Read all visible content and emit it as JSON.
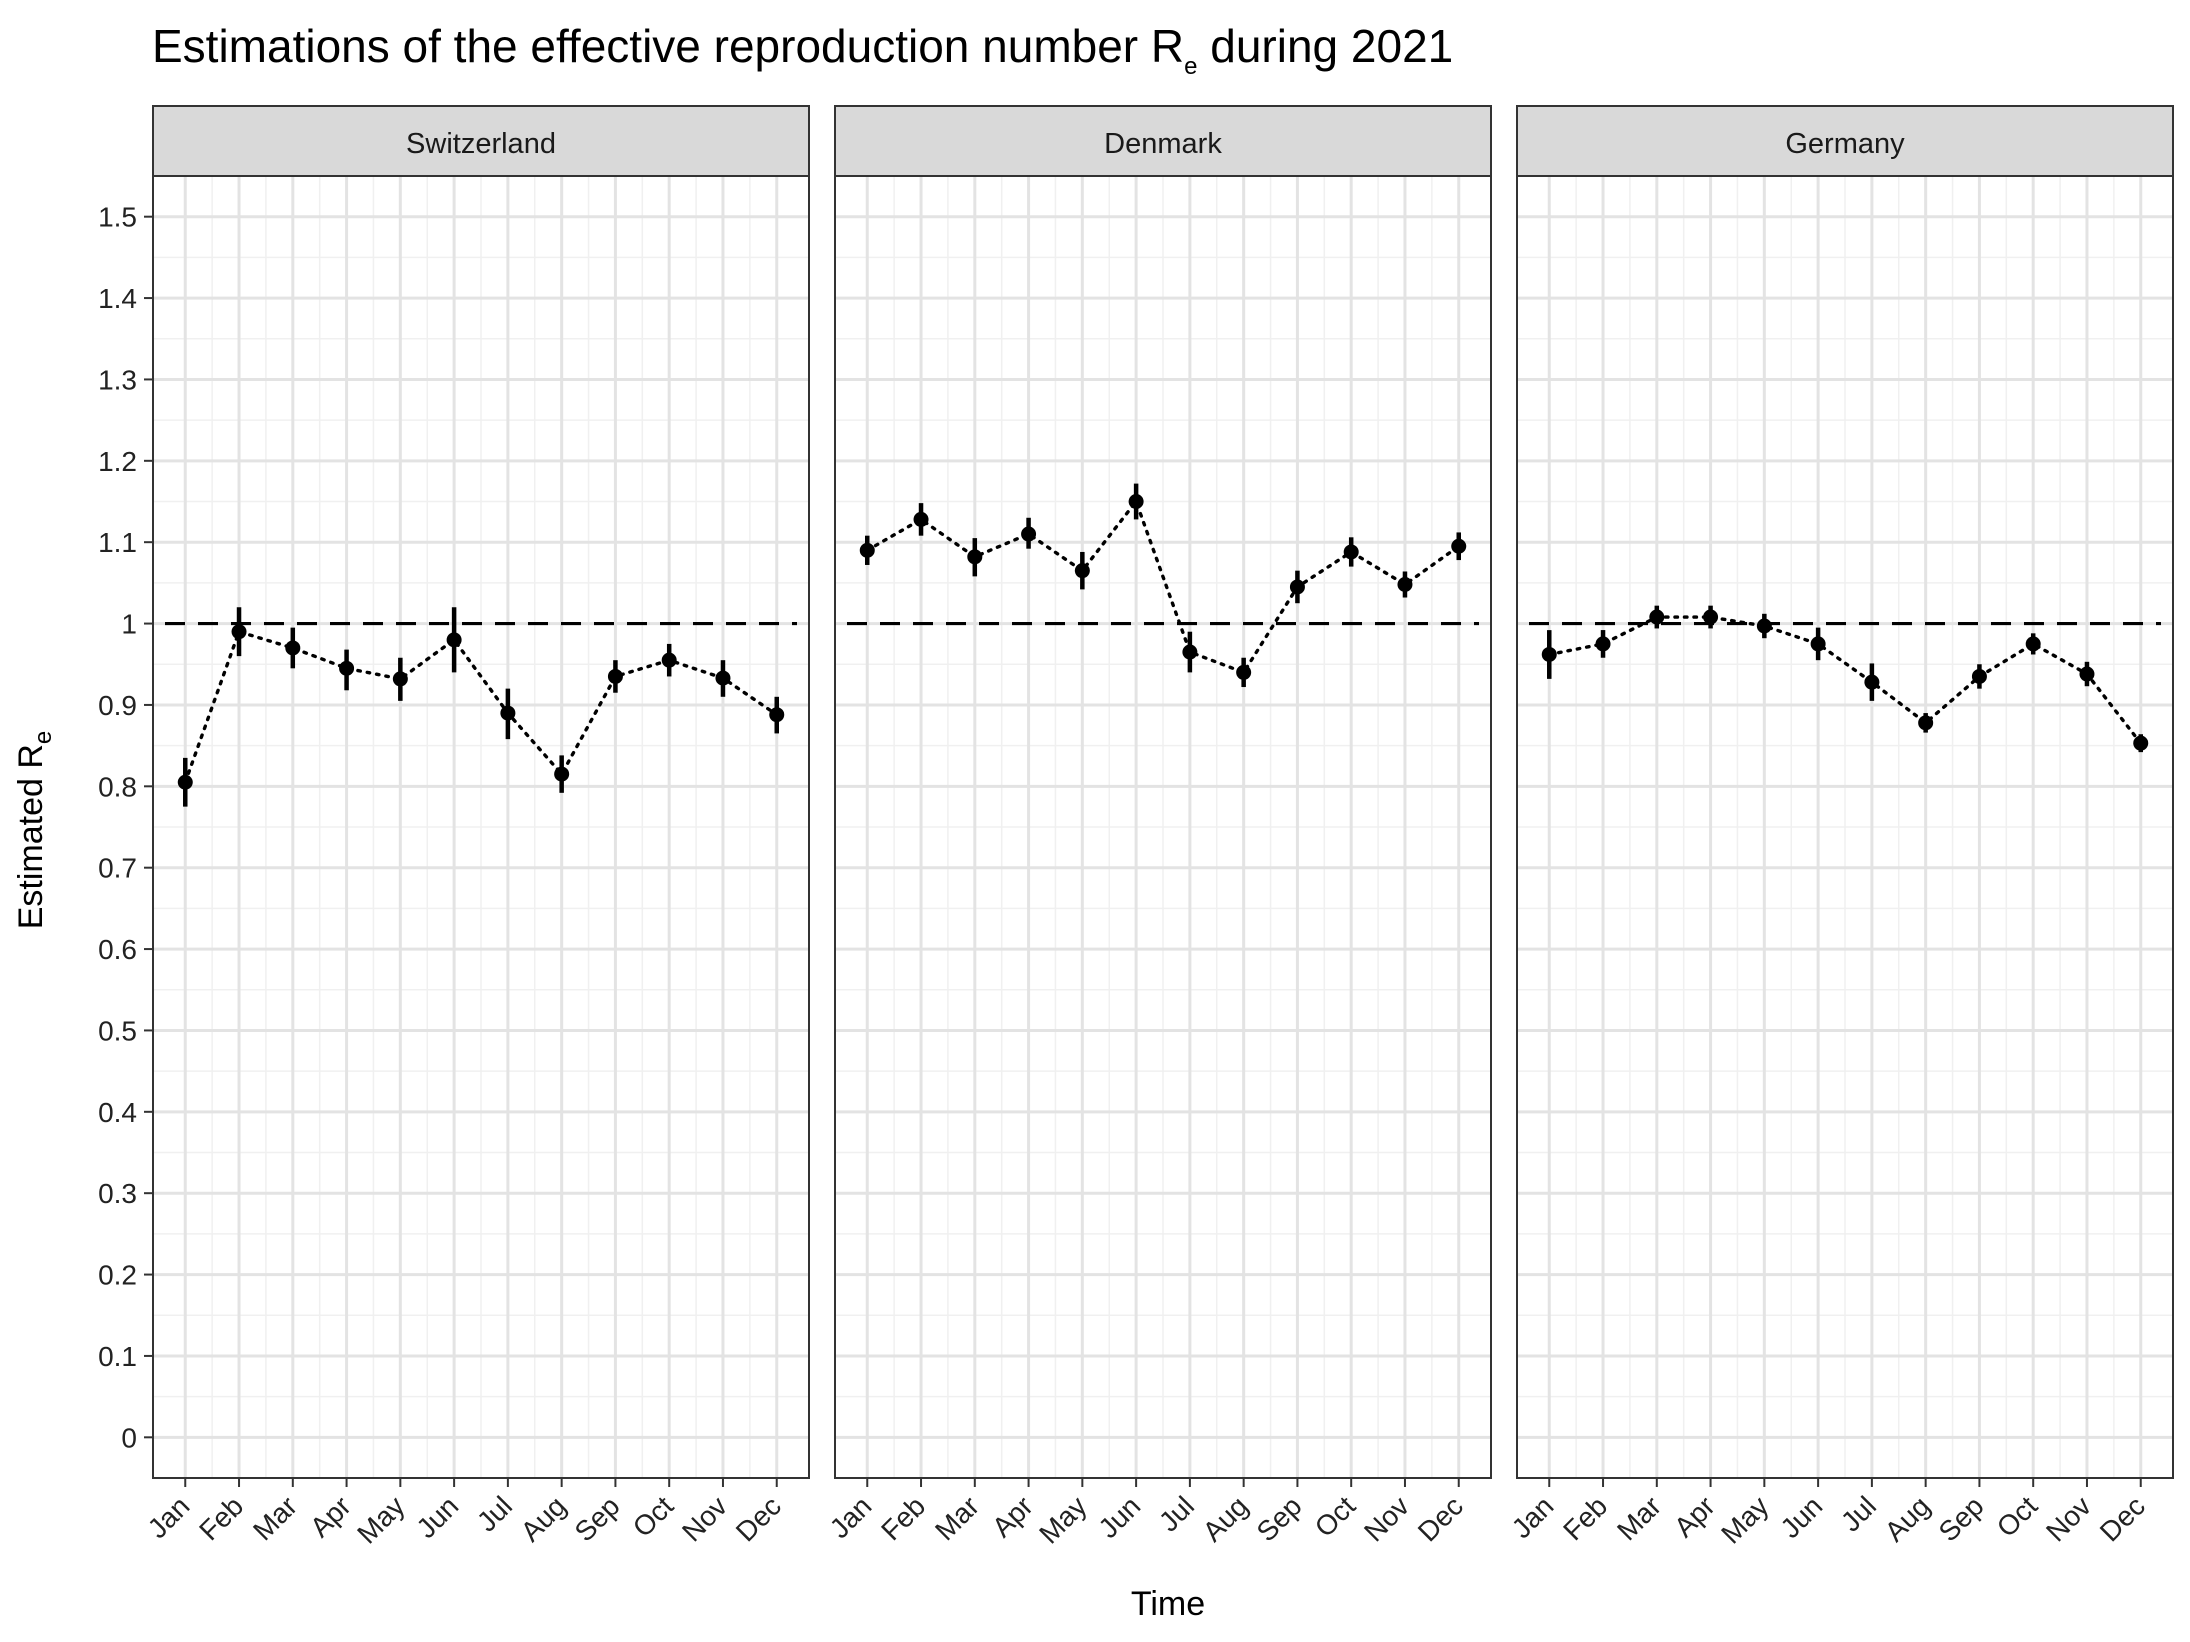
{
  "chart_data": {
    "type": "scatter",
    "title": "Estimations of the effective reproduction number R",
    "title_subscript": "e",
    "title_suffix": " during 2021",
    "xlabel": "Time",
    "ylabel": "Estimated R",
    "ylabel_subscript": "e",
    "ylim": [
      -0.05,
      1.55
    ],
    "yticks": [
      "0",
      "0.1",
      "0.2",
      "0.3",
      "0.4",
      "0.5",
      "0.6",
      "0.7",
      "0.8",
      "0.9",
      "1",
      "1.1",
      "1.2",
      "1.3",
      "1.4",
      "1.5"
    ],
    "reference_line": 1.0,
    "grid": true,
    "categories": [
      "Jan",
      "Feb",
      "Mar",
      "Apr",
      "May",
      "Jun",
      "Jul",
      "Aug",
      "Sep",
      "Oct",
      "Nov",
      "Dec"
    ],
    "panels": [
      {
        "name": "Switzerland",
        "values": [
          0.805,
          0.99,
          0.97,
          0.945,
          0.932,
          0.98,
          0.89,
          0.815,
          0.935,
          0.955,
          0.933,
          0.888
        ],
        "lower": [
          0.775,
          0.96,
          0.945,
          0.918,
          0.905,
          0.94,
          0.858,
          0.792,
          0.915,
          0.935,
          0.91,
          0.865
        ],
        "upper": [
          0.835,
          1.02,
          0.995,
          0.968,
          0.958,
          1.02,
          0.92,
          0.838,
          0.955,
          0.975,
          0.955,
          0.91
        ]
      },
      {
        "name": "Denmark",
        "values": [
          1.09,
          1.128,
          1.082,
          1.11,
          1.065,
          1.15,
          0.965,
          0.94,
          1.045,
          1.088,
          1.048,
          1.095
        ],
        "lower": [
          1.072,
          1.108,
          1.058,
          1.092,
          1.042,
          1.128,
          0.94,
          0.922,
          1.025,
          1.07,
          1.032,
          1.078
        ],
        "upper": [
          1.108,
          1.148,
          1.105,
          1.13,
          1.088,
          1.172,
          0.99,
          0.958,
          1.065,
          1.106,
          1.064,
          1.112
        ]
      },
      {
        "name": "Germany",
        "values": [
          0.962,
          0.975,
          1.008,
          1.008,
          0.997,
          0.975,
          0.928,
          0.878,
          0.935,
          0.975,
          0.938,
          0.853
        ],
        "lower": [
          0.932,
          0.958,
          0.994,
          0.994,
          0.982,
          0.955,
          0.905,
          0.866,
          0.92,
          0.962,
          0.923,
          0.842
        ],
        "upper": [
          0.992,
          0.992,
          1.022,
          1.022,
          1.012,
          0.995,
          0.951,
          0.89,
          0.95,
          0.988,
          0.953,
          0.864
        ]
      }
    ]
  }
}
